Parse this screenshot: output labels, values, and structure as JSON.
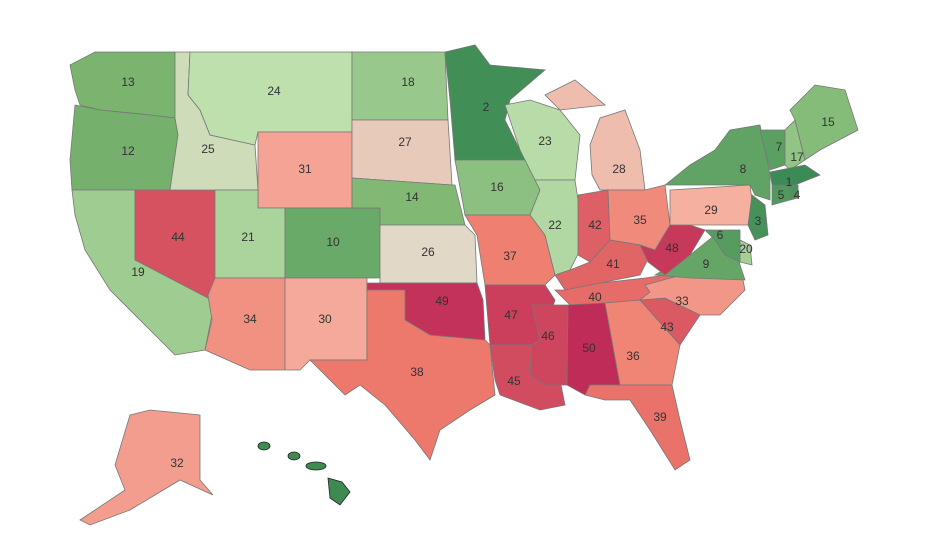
{
  "map": {
    "regions": [
      {
        "rank": 13
      },
      {
        "rank": 12
      },
      {
        "rank": 19
      },
      {
        "rank": 44
      },
      {
        "rank": 25
      },
      {
        "rank": 24
      },
      {
        "rank": 31
      },
      {
        "rank": 21
      },
      {
        "rank": 10
      },
      {
        "rank": 34
      },
      {
        "rank": 30
      },
      {
        "rank": 18
      },
      {
        "rank": 27
      },
      {
        "rank": 14
      },
      {
        "rank": 26
      },
      {
        "rank": 49
      },
      {
        "rank": 38
      },
      {
        "rank": 2
      },
      {
        "rank": 16
      },
      {
        "rank": 37
      },
      {
        "rank": 47
      },
      {
        "rank": 45
      },
      {
        "rank": 23
      },
      {
        "rank": 22
      },
      {
        "rank": 28
      },
      {
        "rank": 42
      },
      {
        "rank": 35
      },
      {
        "rank": 41
      },
      {
        "rank": 40
      },
      {
        "rank": 46
      },
      {
        "rank": 50
      },
      {
        "rank": 36
      },
      {
        "rank": 39
      },
      {
        "rank": 43
      },
      {
        "rank": 33
      },
      {
        "rank": 9
      },
      {
        "rank": 48
      },
      {
        "rank": 29
      },
      {
        "rank": 8
      },
      {
        "rank": 7
      },
      {
        "rank": 17
      },
      {
        "rank": 15
      },
      {
        "rank": 1
      },
      {
        "rank": 5
      },
      {
        "rank": 4
      },
      {
        "rank": 3
      },
      {
        "rank": 20
      },
      {
        "rank": 6
      },
      {
        "rank": 32
      }
    ]
  }
}
